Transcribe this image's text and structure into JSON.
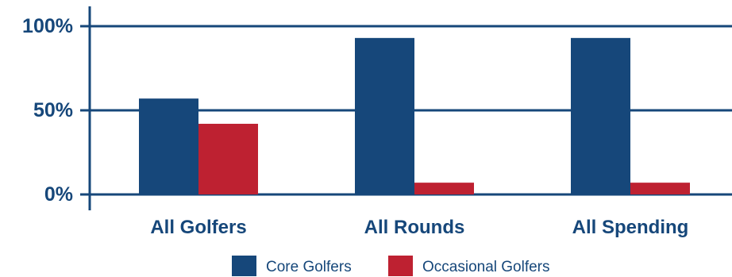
{
  "colors": {
    "core": "#16477a",
    "occasional": "#be2131",
    "axis": "#16477a",
    "text": "#16477a"
  },
  "chart_data": {
    "type": "bar",
    "title": "",
    "xlabel": "",
    "ylabel": "",
    "categories": [
      "All Golfers",
      "All Rounds",
      "All Spending"
    ],
    "series": [
      {
        "name": "Core Golfers",
        "values": [
          57,
          93,
          93
        ]
      },
      {
        "name": "Occasional Golfers",
        "values": [
          42,
          7,
          7
        ]
      }
    ],
    "ylim": [
      0,
      100
    ],
    "yticks": [
      0,
      50,
      100
    ],
    "ytick_labels": [
      "0%",
      "50%",
      "100%"
    ],
    "grid": true,
    "legend_position": "bottom"
  }
}
